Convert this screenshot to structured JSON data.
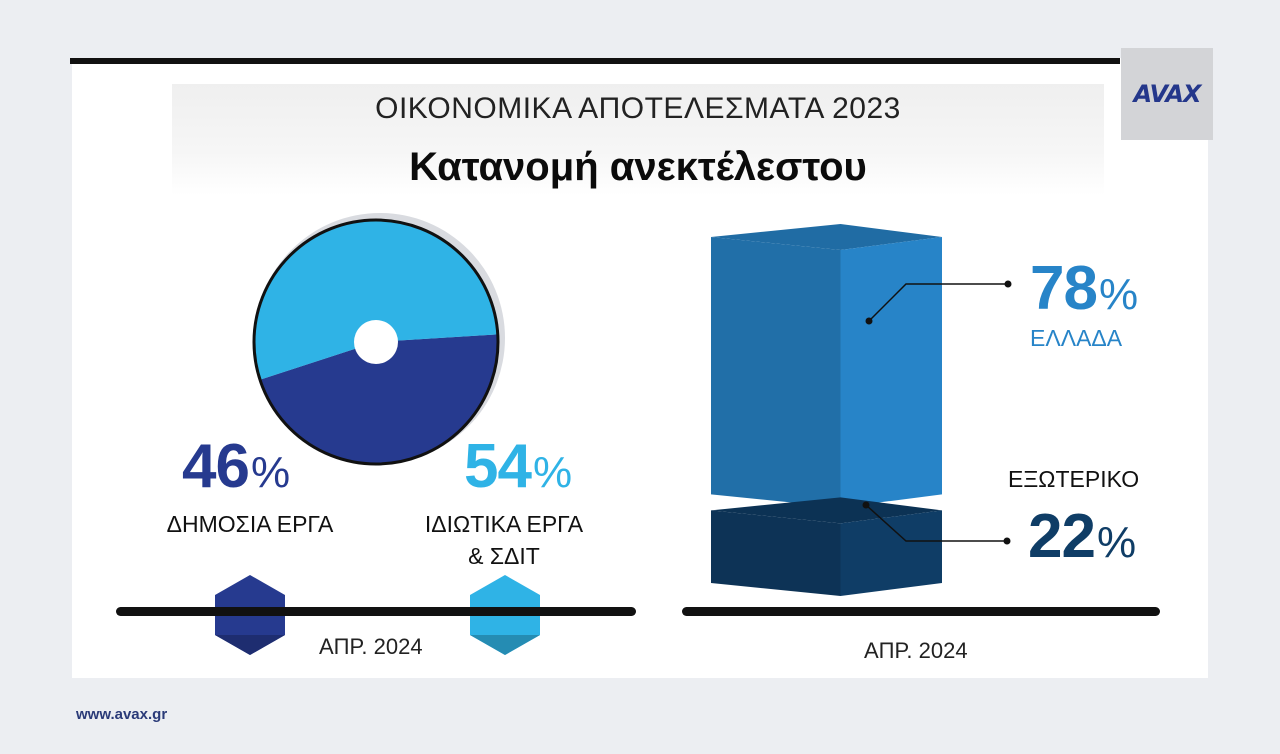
{
  "brand": {
    "logo": "AVAX",
    "url": "www.avax.gr"
  },
  "header": {
    "supertitle": "ΟΙΚΟΝΟΜΙΚΑ ΑΠΟΤΕΛΕΣΜΑΤΑ 2023",
    "title": "Κατανομή ανεκτέλεστου"
  },
  "colors": {
    "dark_blue": "#263a8f",
    "light_blue": "#2fb3e6",
    "greece_blue": "#2784c8",
    "abroad_navy": "#0f3d66"
  },
  "chart_data": [
    {
      "type": "pie",
      "date": "ΑΠΡ. 2024",
      "slices": [
        {
          "label": "ΔΗΜΟΣΙΑ ΕΡΓΑ",
          "value": 46,
          "color": "#263a8f"
        },
        {
          "label": "ΙΔΙΩΤΙΚΑ ΕΡΓΑ & ΣΔΙΤ",
          "label_lines": [
            "ΙΔΙΩΤΙΚΑ ΕΡΓΑ",
            "& ΣΔΙΤ"
          ],
          "value": 54,
          "color": "#2fb3e6"
        }
      ]
    },
    {
      "type": "bar",
      "stacked": true,
      "date": "ΑΠΡ. 2024",
      "segments": [
        {
          "label": "ΕΛΛΑΔΑ",
          "value": 78,
          "color": "#2784c8"
        },
        {
          "label": "ΕΞΩΤΕΡΙΚΟ",
          "value": 22,
          "color": "#0f3d66"
        }
      ]
    }
  ],
  "percent_sign": "%"
}
